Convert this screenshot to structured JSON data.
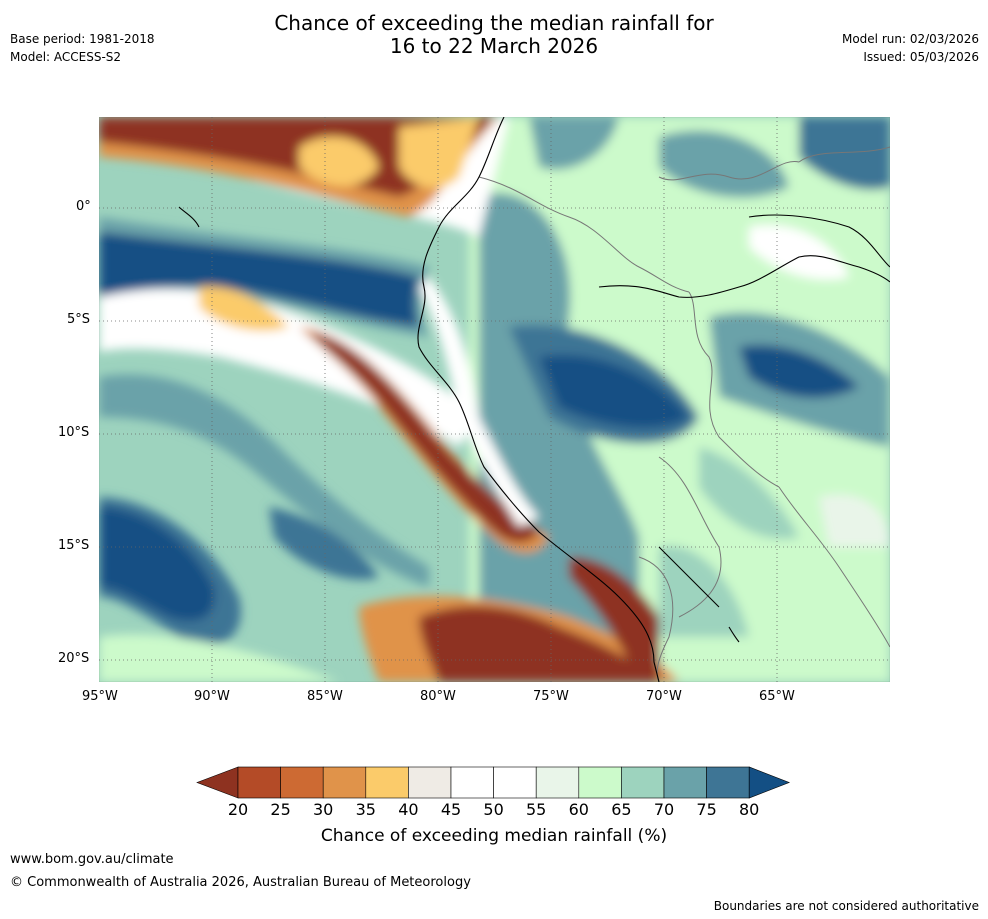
{
  "header": {
    "title_line1": "Chance of exceeding the median rainfall for",
    "title_line2": "16 to 22 March 2026",
    "base_period": "Base period: 1981-2018",
    "model": "Model: ACCESS-S2",
    "model_run": "Model run: 02/03/2026",
    "issued": "Issued: 05/03/2026"
  },
  "axes": {
    "lat_labels": [
      "0°",
      "5°S",
      "10°S",
      "15°S",
      "20°S"
    ],
    "lon_labels": [
      "95°W",
      "90°W",
      "85°W",
      "80°W",
      "75°W",
      "70°W",
      "65°W"
    ]
  },
  "colorbar": {
    "ticks": [
      "20",
      "25",
      "30",
      "35",
      "40",
      "45",
      "50",
      "55",
      "60",
      "65",
      "70",
      "75",
      "80"
    ],
    "label": "Chance of exceeding median rainfall (%)",
    "colors": [
      "#8e3220",
      "#b44b27",
      "#cd6a33",
      "#e0934a",
      "#fbcb6a",
      "#efebe5",
      "#ffffff",
      "#ffffff",
      "#e9f5e9",
      "#ccfacb",
      "#9dd3be",
      "#6aa2a9",
      "#3e7595",
      "#134f84"
    ]
  },
  "footer": {
    "website": "www.bom.gov.au/climate",
    "copyright": "© Commonwealth of Australia 2026, Australian Bureau of Meteorology",
    "disclaimer": "Boundaries are not considered authoritative"
  }
}
